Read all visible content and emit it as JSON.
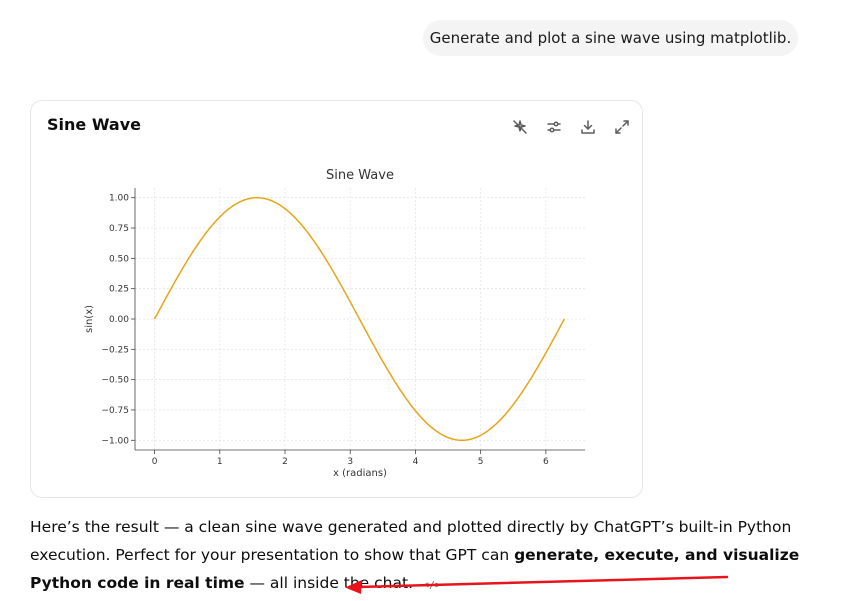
{
  "user_message": "Generate and plot a sine wave using matplotlib.",
  "card": {
    "title": "Sine Wave",
    "toolbar": [
      {
        "name": "sparkle-off-icon"
      },
      {
        "name": "sliders-icon"
      },
      {
        "name": "download-icon"
      },
      {
        "name": "expand-icon"
      }
    ]
  },
  "chart_data": {
    "type": "line",
    "title": "Sine Wave",
    "xlabel": "x (radians)",
    "ylabel": "sin(x)",
    "xlim": [
      -0.3,
      6.6
    ],
    "ylim": [
      -1.08,
      1.08
    ],
    "xticks": [
      0,
      1,
      2,
      3,
      4,
      5,
      6
    ],
    "xtick_labels": [
      "0",
      "1",
      "2",
      "3",
      "4",
      "5",
      "6"
    ],
    "yticks": [
      -1.0,
      -0.75,
      -0.5,
      -0.25,
      0.0,
      0.25,
      0.5,
      0.75,
      1.0
    ],
    "ytick_labels": [
      "−1.00",
      "−0.75",
      "−0.50",
      "−0.25",
      "0.00",
      "0.25",
      "0.50",
      "0.75",
      "1.00"
    ],
    "grid": true,
    "color": "#e6a519",
    "series": [
      {
        "function": "sin",
        "x_range": [
          0,
          6.283
        ],
        "x": [
          0,
          0.5,
          1.0,
          1.5708,
          2.0,
          2.5,
          3.1416,
          3.5,
          4.0,
          4.7124,
          5.0,
          5.5,
          6.283
        ],
        "y": [
          0,
          0.479,
          0.841,
          1.0,
          0.909,
          0.598,
          0,
          -0.351,
          -0.757,
          -1.0,
          -0.959,
          -0.706,
          0
        ]
      }
    ]
  },
  "answer": {
    "part1": "Here’s the result — a clean sine wave generated and plotted directly by ChatGPT’s built-in Python execution. Perfect for your presentation to show that GPT can ",
    "bold": "generate, execute, and visualize Python code in real time",
    "part2": " — all inside the chat.",
    "code_chip": "</>"
  },
  "annotation": {
    "arrow_color": "#e8141b"
  }
}
